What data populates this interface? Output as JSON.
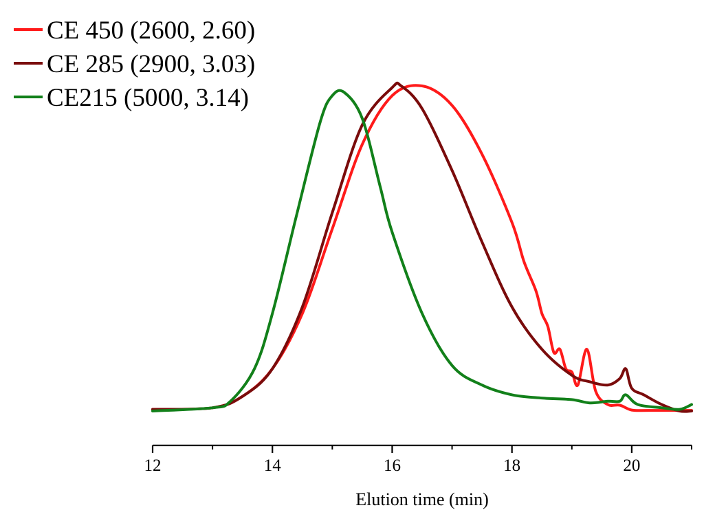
{
  "chart_data": {
    "type": "line",
    "title": "",
    "xlabel": "Elution time (min)",
    "ylabel": "",
    "xlim": [
      12,
      21
    ],
    "ylim": [
      0,
      1
    ],
    "grid": false,
    "legend_position": "top-left",
    "x_ticks": [
      12,
      14,
      16,
      18,
      20
    ],
    "x_tick_labels": [
      "12",
      "14",
      "16",
      "18",
      "20"
    ],
    "x_minor_ticks": [
      13,
      15,
      17,
      19,
      21
    ],
    "series": [
      {
        "name": "CE 450 (2600, 2.60)",
        "color": "#ff1a1a",
        "x": [
          12.0,
          13.0,
          13.5,
          14.0,
          14.5,
          15.0,
          15.5,
          16.0,
          16.5,
          17.0,
          17.5,
          18.0,
          18.2,
          18.4,
          18.5,
          18.6,
          18.7,
          18.8,
          18.9,
          19.0,
          19.1,
          19.25,
          19.4,
          19.6,
          19.8,
          20.0,
          20.3,
          21.0
        ],
        "y": [
          0.005,
          0.01,
          0.045,
          0.13,
          0.3,
          0.56,
          0.82,
          0.97,
          1.0,
          0.94,
          0.79,
          0.58,
          0.46,
          0.37,
          0.3,
          0.26,
          0.18,
          0.19,
          0.13,
          0.12,
          0.08,
          0.19,
          0.06,
          0.02,
          0.018,
          0.003,
          0.002,
          0.002
        ]
      },
      {
        "name": "CE 285 (2900, 3.03)",
        "color": "#7a0b0b",
        "x": [
          12.0,
          13.0,
          13.5,
          14.0,
          14.5,
          15.0,
          15.5,
          16.0,
          16.15,
          16.5,
          17.0,
          17.5,
          18.0,
          18.5,
          19.0,
          19.3,
          19.6,
          19.8,
          19.9,
          20.0,
          20.2,
          20.5,
          20.8,
          21.0
        ],
        "y": [
          0.005,
          0.01,
          0.045,
          0.13,
          0.32,
          0.61,
          0.88,
          0.995,
          1.0,
          0.93,
          0.74,
          0.52,
          0.32,
          0.19,
          0.11,
          0.09,
          0.08,
          0.1,
          0.13,
          0.07,
          0.05,
          0.02,
          0.0,
          0.0
        ]
      },
      {
        "name": "CE215 (5000, 3.14)",
        "color": "#12801a",
        "x": [
          12.0,
          13.0,
          13.3,
          13.7,
          14.0,
          14.4,
          14.8,
          15.0,
          15.2,
          15.5,
          15.8,
          16.0,
          16.5,
          17.0,
          17.5,
          18.0,
          18.5,
          19.0,
          19.3,
          19.6,
          19.8,
          19.9,
          20.1,
          20.5,
          20.8,
          21.0
        ],
        "y": [
          0.0,
          0.01,
          0.03,
          0.13,
          0.3,
          0.6,
          0.89,
          0.97,
          0.98,
          0.9,
          0.69,
          0.55,
          0.3,
          0.14,
          0.08,
          0.05,
          0.04,
          0.035,
          0.025,
          0.03,
          0.03,
          0.05,
          0.02,
          0.01,
          0.005,
          0.02
        ]
      }
    ]
  }
}
